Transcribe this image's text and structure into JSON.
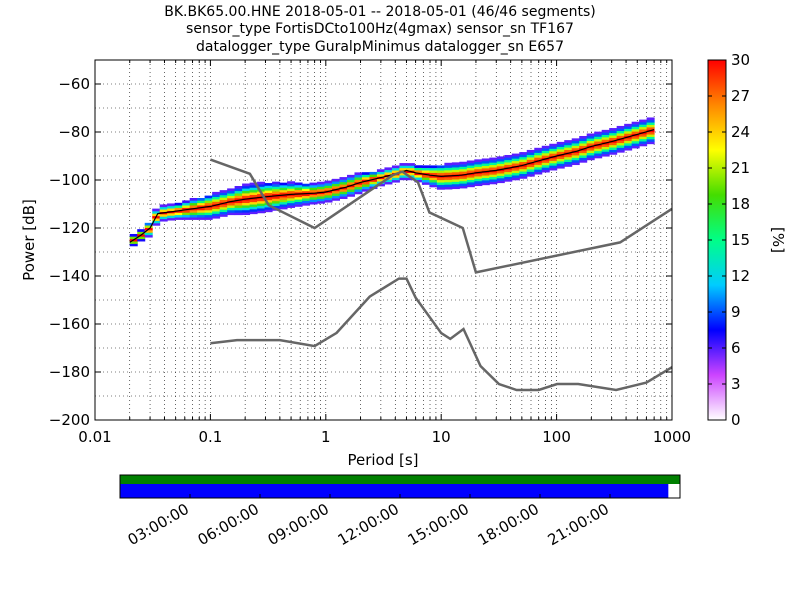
{
  "chart_data": [
    {
      "type": "heatmap",
      "title_lines": [
        "BK.BK65.00.HNE   2018-05-01 -- 2018-05-01  (46/46 segments)",
        "sensor_type FortisDCto100Hz(4gmax) sensor_sn TF167",
        "datalogger_type GuralpMinimus datalogger_sn E657"
      ],
      "xlabel": "Period [s]",
      "ylabel": "Power [dB]",
      "xscale": "log",
      "xlim": [
        0.01,
        1000
      ],
      "ylim": [
        -200,
        -50
      ],
      "x_ticks": [
        0.01,
        0.1,
        1,
        10,
        100,
        1000
      ],
      "x_tick_labels": [
        "0.01",
        "0.1",
        "1",
        "10",
        "100",
        "1000"
      ],
      "y_ticks": [
        -200,
        -180,
        -160,
        -140,
        -120,
        -100,
        -80,
        -60
      ],
      "y_tick_labels": [
        "−200",
        "−180",
        "−160",
        "−140",
        "−120",
        "−100",
        "−80",
        "−60"
      ],
      "grid": "dotted",
      "colorbar": {
        "label": "[%]",
        "range": [
          0,
          30
        ],
        "ticks": [
          0,
          3,
          6,
          9,
          12,
          15,
          18,
          21,
          24,
          27,
          30
        ],
        "tick_labels": [
          "0",
          "3",
          "6",
          "9",
          "12",
          "15",
          "18",
          "21",
          "24",
          "27",
          "30"
        ],
        "colormap": [
          "#ffffff",
          "#cc44ff",
          "#0000ff",
          "#00ccff",
          "#00ff88",
          "#44dd00",
          "#ffff00",
          "#ff8800",
          "#ff0000"
        ]
      },
      "psd_mode": {
        "periods": [
          0.02,
          0.025,
          0.03,
          0.035,
          0.05,
          0.07,
          0.1,
          0.15,
          0.2,
          0.3,
          0.5,
          0.8,
          1,
          1.5,
          2,
          3,
          4,
          5,
          6,
          8,
          10,
          15,
          20,
          30,
          50,
          70,
          100,
          150,
          200,
          300,
          500,
          700
        ],
        "power_db": [
          -126,
          -123,
          -120,
          -114,
          -113,
          -112,
          -111,
          -109,
          -108,
          -107,
          -106,
          -105.5,
          -105,
          -103,
          -101,
          -99,
          -97.5,
          -96,
          -97,
          -98,
          -98.5,
          -98,
          -97,
          -96,
          -94,
          -92,
          -90,
          -88,
          -86,
          -84,
          -81,
          -79
        ]
      },
      "nhnm": {
        "periods": [
          0.1,
          0.22,
          0.32,
          0.8,
          3.8,
          4.6,
          6.3,
          7.9,
          15.4,
          20,
          354.8,
          1000
        ],
        "power_db": [
          -91.5,
          -97.4,
          -110.5,
          -120,
          -98,
          -96.5,
          -101,
          -113.5,
          -120,
          -138.5,
          -126,
          -112
        ]
      },
      "nlnm": {
        "periods": [
          0.1,
          0.17,
          0.4,
          0.8,
          1.24,
          2.4,
          4.3,
          5,
          6,
          10,
          12,
          15.6,
          21.9,
          31.6,
          45,
          70,
          101,
          154,
          328,
          600,
          1000
        ],
        "power_db": [
          -168,
          -166.7,
          -166.7,
          -169.2,
          -163.7,
          -148.6,
          -141.1,
          -141.1,
          -149,
          -163.8,
          -166.2,
          -162.1,
          -177.5,
          -185,
          -187.5,
          -187.5,
          -185,
          -185,
          -187.5,
          -184.4,
          -178
        ]
      },
      "band": {
        "center_periods": [
          0.02,
          0.025,
          0.03,
          0.035,
          0.05,
          0.07,
          0.1,
          0.15,
          0.2,
          0.3,
          0.5,
          0.8,
          1,
          1.5,
          2,
          3,
          4,
          5,
          6,
          8,
          10,
          15,
          20,
          30,
          50,
          70,
          100,
          150,
          200,
          300,
          500,
          700
        ],
        "spread_db": [
          2,
          2,
          3,
          3,
          3,
          4,
          5,
          5,
          6,
          6,
          5,
          4,
          4,
          4,
          4,
          3,
          3,
          3,
          3,
          4,
          5,
          5,
          5,
          5,
          5,
          5,
          5,
          5,
          5,
          5,
          5,
          5
        ]
      }
    },
    {
      "type": "timeline",
      "tick_labels": [
        "03:00:00",
        "06:00:00",
        "09:00:00",
        "12:00:00",
        "15:00:00",
        "18:00:00",
        "21:00:00"
      ],
      "tick_hours": [
        3,
        6,
        9,
        12,
        15,
        18,
        21
      ],
      "range_hours": [
        0,
        24
      ],
      "data_coverage": [
        0,
        24
      ],
      "psd_coverage": [
        0,
        23.5
      ],
      "colors": {
        "data": "#008000",
        "psd": "#0000ff"
      }
    }
  ]
}
